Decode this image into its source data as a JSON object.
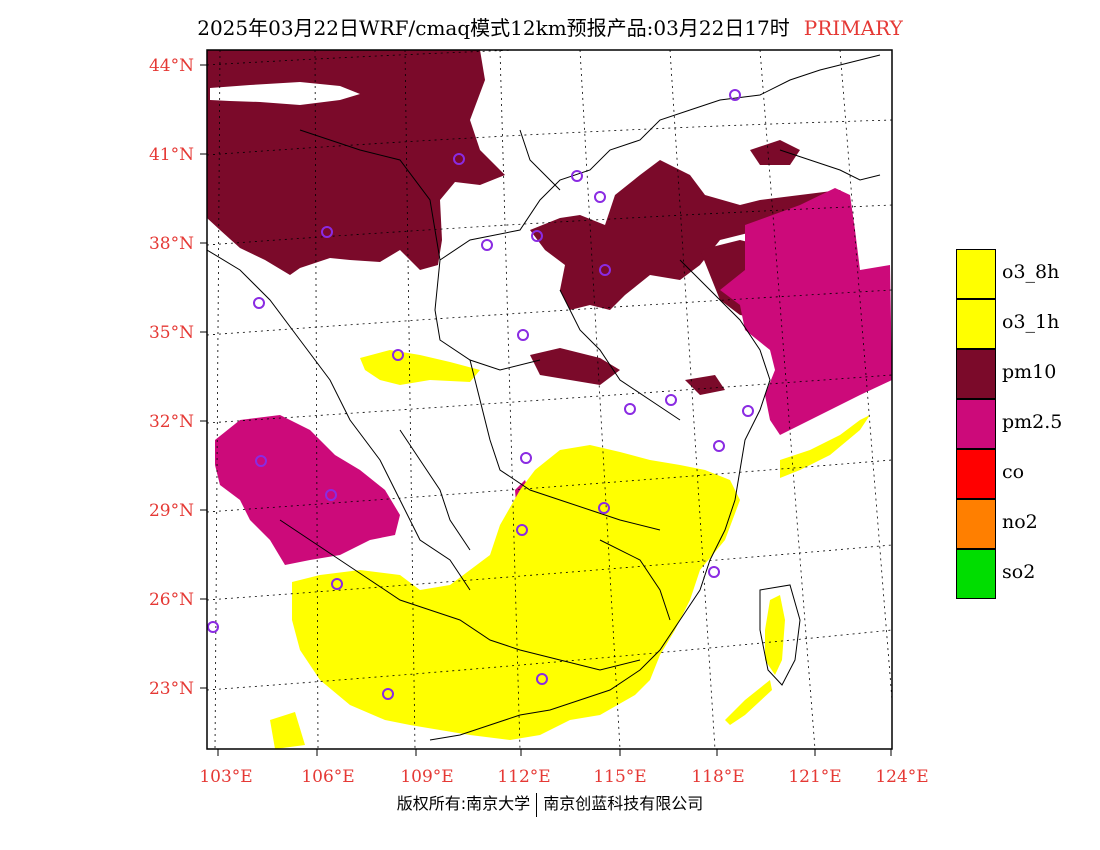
{
  "title": {
    "main": "2025年03月22日WRF/cmaq模式12km预报产品:03月22日17时",
    "tag": "PRIMARY"
  },
  "map": {
    "lon_range": [
      103,
      124
    ],
    "lat_range": [
      21,
      44
    ],
    "lat_ticks": [
      "44°N",
      "41°N",
      "38°N",
      "35°N",
      "32°N",
      "29°N",
      "26°N",
      "23°N"
    ],
    "lon_ticks": [
      "103°E",
      "106°E",
      "109°E",
      "112°E",
      "115°E",
      "118°E",
      "121°E",
      "124°E"
    ],
    "tick_color": "#e53935",
    "pollutant_colors": {
      "o3_8h": "#ffff00",
      "o3_1h": "#ffff00",
      "pm10": "#7b0a2a",
      "pm25": "#cc0a7a"
    },
    "station_marker_color": "#8a2be2"
  },
  "legend": [
    {
      "label": "o3_8h",
      "color": "#ffff00"
    },
    {
      "label": "o3_1h",
      "color": "#ffff00"
    },
    {
      "label": "pm10",
      "color": "#7b0a2a"
    },
    {
      "label": "pm2.5",
      "color": "#cc0a7a"
    },
    {
      "label": "co",
      "color": "#ff0000"
    },
    {
      "label": "no2",
      "color": "#ff7f00"
    },
    {
      "label": "so2",
      "color": "#00dd00"
    }
  ],
  "copyright": {
    "left": "版权所有:南京大学",
    "right": "南京创蓝科技有限公司"
  }
}
